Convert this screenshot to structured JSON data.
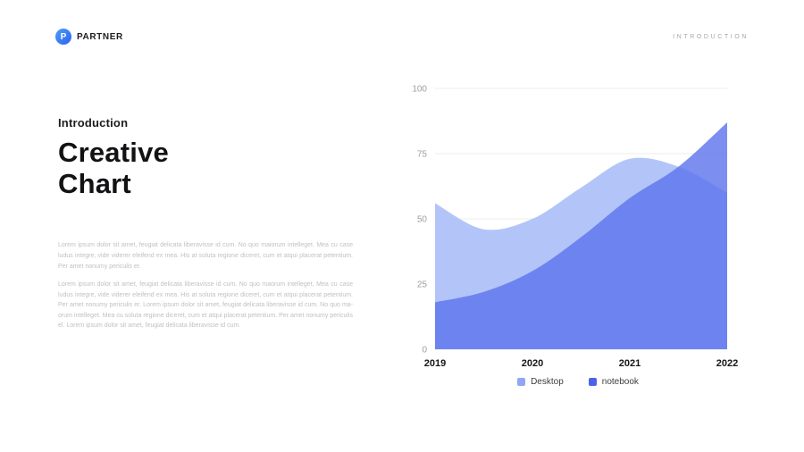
{
  "header": {
    "brand": "PARTNER",
    "brand_initial": "P",
    "section_label": "INTRODUCTION"
  },
  "content": {
    "kicker": "Introduction",
    "title": "Creative\nChart",
    "paragraph1": "Lorem ipsum dolor sit amet, feugiat delicata liberavisse id cum. No quo maiorum intelleget. Mea cu case ludus integre, vide viderer eleifend ex mea. His at soluta regione diceret, cum et atqui placerat petentium. Per amet nonumy periculis er.",
    "paragraph2": "Lorem ipsum dolor sit amet, feugiat delicata liberavisse id cum. No quo ma­orum intelleget. Mea cu case ludus integre, vide viderer eleifend ex mea. His at soluta regione diceret, cum et atqui placerat petentium. Per amet nonumy periculis er. Lorem ipsum dolor sit amet, feugiat delicata liberavisse id cum. No quo ma-orum intelleget. Mea cu soluta regione diceret, cum et atqui placerat petentium. Per amet nonumy periculis el. Lorem ipsum dolor sit amet, feugiat delicata liberavisse id cum."
  },
  "chart_data": {
    "type": "area",
    "title": "",
    "xlabel": "",
    "ylabel": "",
    "x": [
      2019,
      2019.5,
      2020,
      2020.5,
      2021,
      2021.5,
      2022
    ],
    "series": [
      {
        "name": "Desktop",
        "color": "#b3c5f8",
        "legend_color": "#8fa7f4",
        "opacity": 1,
        "values": [
          56,
          46,
          50,
          62,
          73,
          70,
          60
        ]
      },
      {
        "name": "notebook",
        "color": "#5b73ee",
        "legend_color": "#4d62ec",
        "opacity": 0.8,
        "values": [
          18,
          22,
          30,
          43,
          58,
          70,
          87
        ]
      }
    ],
    "xticks": [
      2019,
      2020,
      2021,
      2022
    ],
    "yticks": [
      0,
      25,
      50,
      75,
      100
    ],
    "xlim": [
      2019,
      2022
    ],
    "ylim": [
      0,
      100
    ],
    "grid": "horizontal",
    "legend_position": "bottom"
  }
}
